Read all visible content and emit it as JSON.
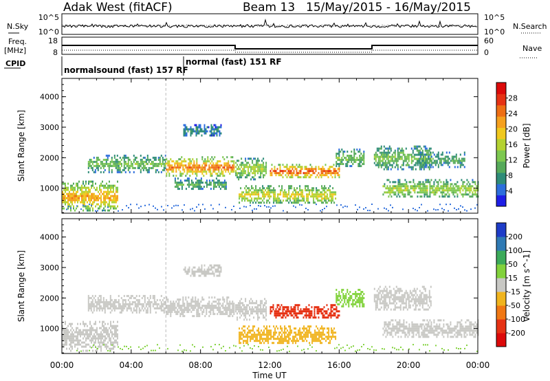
{
  "header": {
    "station": "Adak West (fitACF)",
    "beam": "Beam 13",
    "date_range": "15/May/2015 - 16/May/2015"
  },
  "top_strip": {
    "left_labels": {
      "nsky": "N.Sky",
      "freq": "Freq.",
      "freq_unit": "[MHz]",
      "cpid": "CPID"
    },
    "right_labels": {
      "nsearch": "N.Search",
      "nave": "Nave"
    },
    "nsky_ticks": [
      "10^5",
      "10^0"
    ],
    "freq_ticks": [
      "18",
      "8"
    ],
    "nave_ticks": [
      "60",
      "0"
    ],
    "nsearch_ticks": [
      "10^5",
      "10^0"
    ],
    "cpid_labels": [
      "normalsound (fast) 157 RF",
      "normal (fast) 151 RF"
    ]
  },
  "chart_data": [
    {
      "type": "heatmap",
      "title": "",
      "xlabel": "",
      "ylabel": "Slant Range [km]",
      "xlim": [
        0,
        24
      ],
      "ylim": [
        180,
        4600
      ],
      "y_ticks": [
        "1000",
        "2000",
        "3000",
        "4000"
      ],
      "colorbar": {
        "label": "Power [dB]",
        "ticks": [
          "4",
          "8",
          "12",
          "16",
          "20",
          "24",
          "28"
        ],
        "colors": [
          "#1e1ee6",
          "#2d6edc",
          "#2f8c78",
          "#56aa5a",
          "#7dc850",
          "#b4d232",
          "#f0c81e",
          "#f5a01e",
          "#ee6e14",
          "#e63214",
          "#dc0a0a"
        ]
      },
      "echo_bands": [
        {
          "t0": 0.0,
          "t1": 3.2,
          "r0": 250,
          "r1": 1250,
          "level": 7
        },
        {
          "t0": 1.5,
          "t1": 6.0,
          "r0": 1550,
          "r1": 2100,
          "level": 4
        },
        {
          "t0": 6.0,
          "t1": 9.9,
          "r0": 1400,
          "r1": 2050,
          "level": 8
        },
        {
          "t0": 6.5,
          "t1": 9.5,
          "r0": 950,
          "r1": 1350,
          "level": 3
        },
        {
          "t0": 7.0,
          "t1": 9.2,
          "r0": 2700,
          "r1": 3100,
          "level": 2
        },
        {
          "t0": 10.0,
          "t1": 11.8,
          "r0": 1300,
          "r1": 2000,
          "level": 5
        },
        {
          "t0": 10.2,
          "t1": 15.8,
          "r0": 500,
          "r1": 1100,
          "level": 6
        },
        {
          "t0": 12.0,
          "t1": 16.0,
          "r0": 1350,
          "r1": 1800,
          "level": 9
        },
        {
          "t0": 15.8,
          "t1": 17.4,
          "r0": 1700,
          "r1": 2300,
          "level": 4
        },
        {
          "t0": 18.0,
          "t1": 21.3,
          "r0": 1600,
          "r1": 2400,
          "level": 4
        },
        {
          "t0": 18.5,
          "t1": 24.0,
          "r0": 700,
          "r1": 1300,
          "level": 5
        },
        {
          "t0": 20.5,
          "t1": 23.2,
          "r0": 1700,
          "r1": 2200,
          "level": 3
        }
      ]
    },
    {
      "type": "heatmap",
      "title": "",
      "xlabel": "Time UT",
      "ylabel": "Slant Range [km]",
      "xlim": [
        0,
        24
      ],
      "ylim": [
        180,
        4600
      ],
      "x_ticks": [
        "00:00",
        "04:00",
        "08:00",
        "12:00",
        "16:00",
        "20:00",
        "00:00"
      ],
      "y_ticks": [
        "1000",
        "2000",
        "3000",
        "4000"
      ],
      "colorbar": {
        "label": "Velocity [m s^-1]",
        "ticks": [
          "200",
          "100",
          "50",
          "15",
          "-15",
          "-50",
          "-100",
          "-200"
        ],
        "colors": [
          "#1e3cc8",
          "#2f7ab4",
          "#3caa5a",
          "#82d23c",
          "#c8c8c4",
          "#f0b41e",
          "#f07814",
          "#e63214",
          "#dc0a0a"
        ]
      },
      "echo_bands": [
        {
          "t0": 0.0,
          "t1": 3.2,
          "r0": 250,
          "r1": 1250,
          "color": "#c8c8c4"
        },
        {
          "t0": 1.5,
          "t1": 6.0,
          "r0": 1550,
          "r1": 2100,
          "color": "#c8c8c4"
        },
        {
          "t0": 6.0,
          "t1": 9.9,
          "r0": 1400,
          "r1": 2050,
          "color": "#c8c8c4"
        },
        {
          "t0": 7.0,
          "t1": 9.2,
          "r0": 2700,
          "r1": 3100,
          "color": "#c8c8c4"
        },
        {
          "t0": 10.0,
          "t1": 11.8,
          "r0": 1300,
          "r1": 2000,
          "color": "#c8c8c4"
        },
        {
          "t0": 10.2,
          "t1": 15.8,
          "r0": 500,
          "r1": 1100,
          "color": "#f0b41e"
        },
        {
          "t0": 12.0,
          "t1": 16.0,
          "r0": 1350,
          "r1": 1800,
          "color": "#e63214"
        },
        {
          "t0": 15.8,
          "t1": 17.4,
          "r0": 1700,
          "r1": 2300,
          "color": "#82d23c"
        },
        {
          "t0": 18.0,
          "t1": 21.3,
          "r0": 1600,
          "r1": 2400,
          "color": "#c8c8c4"
        },
        {
          "t0": 18.5,
          "t1": 24.0,
          "r0": 700,
          "r1": 1300,
          "color": "#c8c8c4"
        }
      ]
    }
  ]
}
